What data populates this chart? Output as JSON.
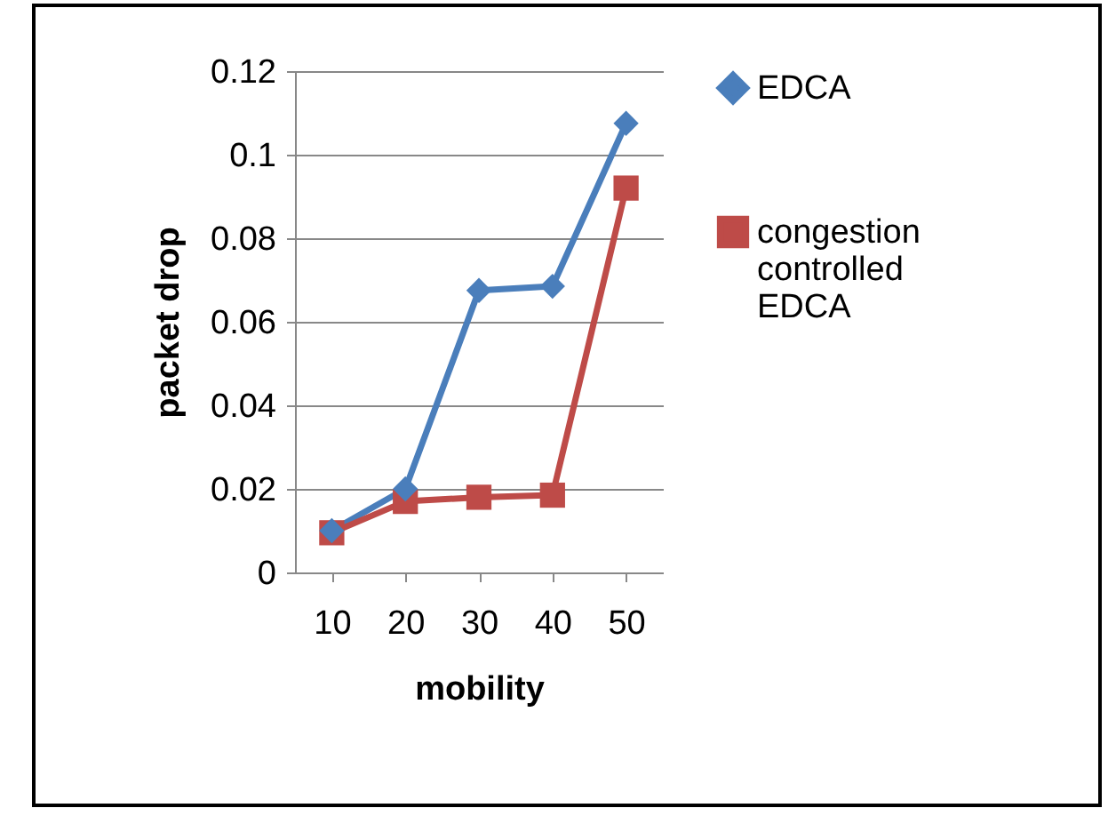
{
  "chart_data": {
    "type": "line",
    "xlabel": "mobility",
    "ylabel": "packet drop",
    "categories": [
      "10",
      "20",
      "30",
      "40",
      "50"
    ],
    "series": [
      {
        "name": "EDCA",
        "color": "#4a7ebb",
        "marker": "diamond",
        "values": [
          0.01,
          0.02,
          0.0675,
          0.0685,
          0.1075
        ]
      },
      {
        "name": "congestion controlled EDCA",
        "color": "#be4b48",
        "marker": "square",
        "values": [
          0.0095,
          0.017,
          0.018,
          0.0185,
          0.092
        ]
      }
    ],
    "ylim": [
      0,
      0.12
    ],
    "yticks": [
      0,
      0.02,
      0.04,
      0.06,
      0.08,
      0.1,
      0.12
    ],
    "grid": "y",
    "legend": "right"
  }
}
